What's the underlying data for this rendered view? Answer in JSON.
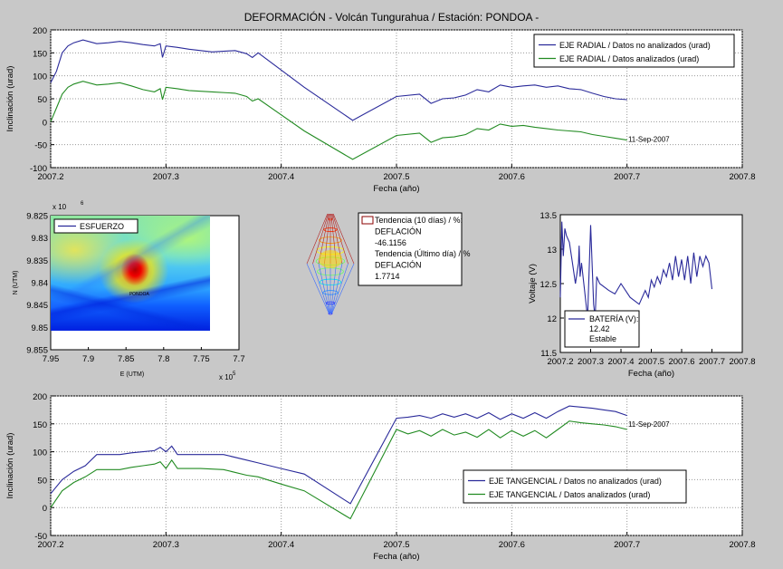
{
  "figure": {
    "title": "DEFORMACIÓN - Volcán Tungurahua  /  Estación: PONDOA -"
  },
  "colors": {
    "figure_bg": "#c8c8c8",
    "axes_bg": "#ffffff",
    "blue": "#2a2a9a",
    "green": "#228b22",
    "grid": "#9a9a9a"
  },
  "chart_data": [
    {
      "type": "line",
      "xlabel": "Fecha (año)",
      "ylabel": "Inclinación (urad)",
      "xlim": [
        2007.2,
        2007.8
      ],
      "ylim": [
        -100,
        200
      ],
      "xticks": [
        2007.2,
        2007.3,
        2007.4,
        2007.5,
        2007.6,
        2007.7,
        2007.8
      ],
      "yticks": [
        -100,
        -50,
        0,
        50,
        100,
        150,
        200
      ],
      "grid": true,
      "legend_position": "top-right",
      "annotation": {
        "text": "11-Sep-2007",
        "x": 2007.701,
        "y": -38
      },
      "series": [
        {
          "name": "EJE RADIAL / Datos no analizados (urad)",
          "color": "#2a2a9a",
          "x": [
            2007.2,
            2007.205,
            2007.21,
            2007.215,
            2007.22,
            2007.228,
            2007.24,
            2007.25,
            2007.26,
            2007.27,
            2007.28,
            2007.29,
            2007.295,
            2007.297,
            2007.3,
            2007.31,
            2007.32,
            2007.34,
            2007.36,
            2007.37,
            2007.375,
            2007.38,
            2007.42,
            2007.462,
            2007.5,
            2007.52,
            2007.53,
            2007.54,
            2007.55,
            2007.56,
            2007.57,
            2007.58,
            2007.59,
            2007.6,
            2007.61,
            2007.62,
            2007.63,
            2007.64,
            2007.65,
            2007.66,
            2007.67,
            2007.68,
            2007.69,
            2007.7
          ],
          "y": [
            85,
            110,
            150,
            165,
            172,
            178,
            170,
            172,
            175,
            172,
            168,
            165,
            170,
            140,
            165,
            162,
            158,
            152,
            155,
            148,
            140,
            150,
            75,
            3,
            55,
            60,
            40,
            50,
            52,
            58,
            70,
            65,
            80,
            75,
            78,
            80,
            75,
            78,
            72,
            70,
            62,
            55,
            50,
            48
          ]
        },
        {
          "name": "EJE RADIAL / Datos analizados (urad)",
          "color": "#228b22",
          "x": [
            2007.2,
            2007.205,
            2007.21,
            2007.215,
            2007.22,
            2007.228,
            2007.24,
            2007.25,
            2007.26,
            2007.27,
            2007.28,
            2007.29,
            2007.295,
            2007.297,
            2007.3,
            2007.31,
            2007.32,
            2007.34,
            2007.36,
            2007.37,
            2007.375,
            2007.38,
            2007.42,
            2007.462,
            2007.5,
            2007.52,
            2007.53,
            2007.54,
            2007.55,
            2007.56,
            2007.57,
            2007.58,
            2007.59,
            2007.6,
            2007.61,
            2007.62,
            2007.63,
            2007.64,
            2007.65,
            2007.66,
            2007.67,
            2007.68,
            2007.69,
            2007.7
          ],
          "y": [
            0,
            30,
            60,
            75,
            82,
            88,
            80,
            82,
            85,
            78,
            70,
            65,
            72,
            48,
            75,
            72,
            68,
            65,
            62,
            55,
            45,
            50,
            -20,
            -82,
            -30,
            -25,
            -45,
            -35,
            -33,
            -28,
            -15,
            -18,
            -5,
            -10,
            -8,
            -12,
            -15,
            -18,
            -20,
            -22,
            -28,
            -32,
            -36,
            -40
          ]
        }
      ]
    },
    {
      "type": "heatmap",
      "xlabel": "E (UTM)",
      "ylabel": "N (UTM)",
      "xlim": [
        7.7,
        7.95
      ],
      "ylim": [
        9.825,
        9.855
      ],
      "xticks": [
        "7.95",
        "7.9",
        "7.85",
        "7.8",
        "7.75",
        "7.7"
      ],
      "yticks": [
        "9.825",
        "9.83",
        "9.835",
        "9.84",
        "9.845",
        "9.85",
        "9.855"
      ],
      "x_exponent": "x 10",
      "x_exponent_power": "5",
      "y_exponent": "x 10",
      "y_exponent_power": "6",
      "legend": "ESFUERZO",
      "map_label": "PONDOA"
    },
    {
      "type": "surface",
      "legend": [
        "Tendencia (10 días) / %:",
        "DEFLACIÓN",
        "-46.1156",
        "Tendencia (Último día) / %",
        "DEFLACIÓN",
        "1.7714"
      ]
    },
    {
      "type": "line",
      "xlabel": "Fecha (año)",
      "ylabel": "Voltaje (V)",
      "xlim": [
        2007.2,
        2007.8
      ],
      "ylim": [
        11.5,
        13.5
      ],
      "xticks": [
        2007.2,
        2007.3,
        2007.4,
        2007.5,
        2007.6,
        2007.7,
        2007.8
      ],
      "yticks": [
        11.5,
        12,
        12.5,
        13,
        13.5
      ],
      "legend": [
        "BATERÍA (V):",
        "12.42",
        "Estable"
      ],
      "series": [
        {
          "name": "BATERÍA (V):",
          "color": "#2a2a9a",
          "x": [
            2007.2,
            2007.205,
            2007.21,
            2007.215,
            2007.22,
            2007.23,
            2007.24,
            2007.25,
            2007.26,
            2007.262,
            2007.265,
            2007.27,
            2007.28,
            2007.29,
            2007.3,
            2007.31,
            2007.315,
            2007.32,
            2007.33,
            2007.36,
            2007.38,
            2007.4,
            2007.43,
            2007.46,
            2007.48,
            2007.49,
            2007.5,
            2007.51,
            2007.52,
            2007.53,
            2007.54,
            2007.55,
            2007.56,
            2007.57,
            2007.58,
            2007.59,
            2007.6,
            2007.61,
            2007.62,
            2007.63,
            2007.64,
            2007.65,
            2007.66,
            2007.67,
            2007.68,
            2007.69,
            2007.7
          ],
          "y": [
            12.3,
            13.4,
            12.9,
            13.3,
            13.2,
            13.1,
            12.8,
            12.5,
            12.8,
            13.05,
            12.6,
            12.8,
            12.4,
            12.0,
            13.35,
            12.2,
            12.0,
            12.6,
            12.5,
            12.4,
            12.35,
            12.5,
            12.3,
            12.2,
            12.4,
            12.3,
            12.55,
            12.45,
            12.6,
            12.5,
            12.7,
            12.6,
            12.8,
            12.55,
            12.9,
            12.6,
            12.85,
            12.55,
            12.9,
            12.5,
            12.95,
            12.6,
            12.9,
            12.75,
            12.9,
            12.8,
            12.42
          ]
        }
      ]
    },
    {
      "type": "line",
      "xlabel": "Fecha (año)",
      "ylabel": "Inclinación (urad)",
      "xlim": [
        2007.2,
        2007.8
      ],
      "ylim": [
        -50,
        200
      ],
      "xticks": [
        2007.2,
        2007.3,
        2007.4,
        2007.5,
        2007.6,
        2007.7,
        2007.8
      ],
      "yticks": [
        -50,
        0,
        50,
        100,
        150,
        200
      ],
      "grid": true,
      "legend_position": "bottom-right",
      "annotation": {
        "text": "11-Sep-2007",
        "x": 2007.701,
        "y": 150
      },
      "series": [
        {
          "name": "EJE TANGENCIAL / Datos no analizados (urad)",
          "color": "#2a2a9a",
          "x": [
            2007.2,
            2007.21,
            2007.22,
            2007.23,
            2007.24,
            2007.25,
            2007.26,
            2007.27,
            2007.28,
            2007.29,
            2007.295,
            2007.3,
            2007.305,
            2007.31,
            2007.33,
            2007.35,
            2007.37,
            2007.38,
            2007.4,
            2007.42,
            2007.46,
            2007.5,
            2007.51,
            2007.52,
            2007.53,
            2007.54,
            2007.55,
            2007.56,
            2007.57,
            2007.58,
            2007.59,
            2007.6,
            2007.61,
            2007.62,
            2007.63,
            2007.64,
            2007.65,
            2007.66,
            2007.67,
            2007.68,
            2007.69,
            2007.7
          ],
          "y": [
            25,
            50,
            65,
            75,
            95,
            95,
            95,
            98,
            100,
            102,
            108,
            100,
            110,
            95,
            95,
            95,
            85,
            80,
            70,
            60,
            7,
            160,
            162,
            165,
            160,
            168,
            162,
            168,
            160,
            170,
            158,
            168,
            160,
            170,
            160,
            172,
            182,
            180,
            178,
            175,
            172,
            165
          ]
        },
        {
          "name": "EJE TANGENCIAL / Datos analizados (urad)",
          "color": "#228b22",
          "x": [
            2007.2,
            2007.21,
            2007.22,
            2007.23,
            2007.24,
            2007.25,
            2007.26,
            2007.27,
            2007.28,
            2007.29,
            2007.295,
            2007.3,
            2007.305,
            2007.31,
            2007.33,
            2007.35,
            2007.37,
            2007.38,
            2007.4,
            2007.42,
            2007.46,
            2007.5,
            2007.51,
            2007.52,
            2007.53,
            2007.54,
            2007.55,
            2007.56,
            2007.57,
            2007.58,
            2007.59,
            2007.6,
            2007.61,
            2007.62,
            2007.63,
            2007.64,
            2007.65,
            2007.66,
            2007.67,
            2007.68,
            2007.69,
            2007.7
          ],
          "y": [
            0,
            30,
            45,
            55,
            68,
            68,
            68,
            72,
            75,
            78,
            82,
            70,
            85,
            70,
            70,
            68,
            58,
            55,
            42,
            30,
            -20,
            140,
            132,
            138,
            128,
            140,
            130,
            135,
            126,
            140,
            125,
            138,
            128,
            138,
            125,
            140,
            155,
            152,
            150,
            148,
            145,
            140
          ]
        }
      ]
    }
  ]
}
